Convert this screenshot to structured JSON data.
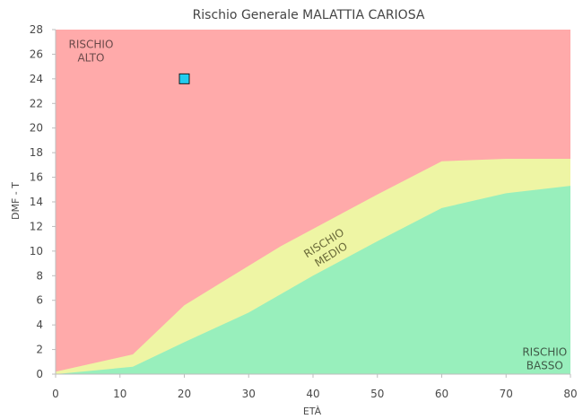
{
  "chart_data": {
    "type": "area",
    "title": "Rischio Generale MALATTIA CARIOSA",
    "xlabel": "ETÀ",
    "ylabel": "DMF - T",
    "xlim": [
      0,
      80
    ],
    "ylim": [
      0,
      28
    ],
    "x_ticks": [
      0,
      10,
      20,
      30,
      40,
      50,
      60,
      70,
      80
    ],
    "y_ticks": [
      0,
      2,
      4,
      6,
      8,
      10,
      12,
      14,
      16,
      18,
      20,
      22,
      24,
      26,
      28
    ],
    "grid": false,
    "regions": [
      {
        "name": "RISCHIO ALTO",
        "label_lines": [
          "RISCHIO",
          "ALTO"
        ],
        "color": "#ffaaaa",
        "label_at": [
          5.5,
          26.5
        ],
        "label_rotation": 0
      },
      {
        "name": "RISCHIO MEDIO",
        "label_lines": [
          "RISCHIO",
          "MEDIO"
        ],
        "color": "#eef5a4",
        "label_at": [
          42,
          10.4
        ],
        "label_rotation": -32
      },
      {
        "name": "RISCHIO BASSO",
        "label_lines": [
          "RISCHIO",
          "BASSO"
        ],
        "color": "#98efbc",
        "label_at": [
          76,
          1.5
        ],
        "label_rotation": 0
      }
    ],
    "boundaries": [
      {
        "name": "alto-medio",
        "x": [
          0,
          12,
          20,
          35,
          50,
          60,
          70,
          80
        ],
        "y": [
          0.2,
          1.6,
          5.6,
          10.4,
          14.6,
          17.3,
          17.5,
          17.5
        ]
      },
      {
        "name": "medio-basso",
        "x": [
          0,
          12,
          20,
          30,
          40,
          50,
          60,
          70,
          80
        ],
        "y": [
          0,
          0.6,
          2.6,
          5.0,
          8.0,
          10.8,
          13.5,
          14.7,
          15.3
        ]
      }
    ],
    "points": [
      {
        "x": 20,
        "y": 24,
        "color": "#22ccee"
      }
    ]
  }
}
